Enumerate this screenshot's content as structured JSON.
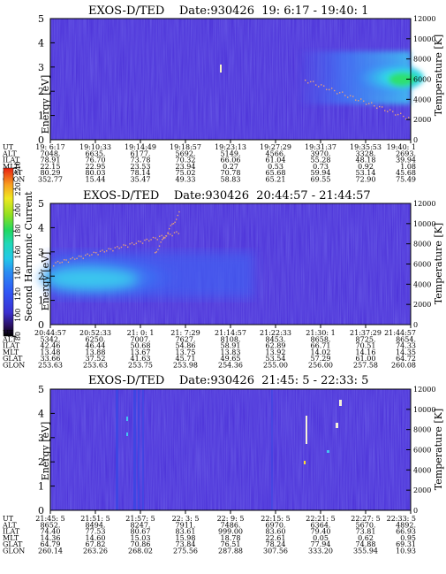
{
  "chart_data": [
    {
      "type": "heatmap",
      "title": "EXOS-D/TED    Date:930426  19: 6:17 - 19:40: 1",
      "ylabel": "Energy [eV]",
      "ylabel_right": "Temperature [K]",
      "ylim": [
        0,
        5
      ],
      "yticks": [
        "0",
        "1",
        "2",
        "3",
        "4",
        "5"
      ],
      "ylim_right": [
        0,
        12000
      ],
      "yticks_right": [
        "0",
        "2000",
        "4000",
        "6000",
        "8000",
        "10000",
        "12000"
      ],
      "table": {
        "row_labels": [
          "UT",
          "ALT",
          "ILAT",
          "MLT",
          "GLAT",
          "GLON"
        ],
        "columns": [
          [
            "19: 6:17",
            "7048.",
            "78.91",
            "22.15",
            "80.29",
            "352.77"
          ],
          [
            "19:10:33",
            "6635.",
            "76.70",
            "22.95",
            "80.03",
            "15.44"
          ],
          [
            "19:14:49",
            "6177.",
            "73.78",
            "23.53",
            "78.14",
            "35.47"
          ],
          [
            "19:18:57",
            "5692.",
            "70.32",
            "23.94",
            "75.02",
            "49.33"
          ],
          [
            "19:23:13",
            "5149.",
            "66.06",
            "0.27",
            "70.78",
            "58.83"
          ],
          [
            "19:27:29",
            "4566.",
            "61.04",
            "0.53",
            "65.68",
            "65.21"
          ],
          [
            "19:31:37",
            "3970.",
            "55.28",
            "0.73",
            "59.94",
            "69.55"
          ],
          [
            "19:35:53",
            "3328.",
            "48.18",
            "0.92",
            "53.14",
            "72.90"
          ],
          [
            "19:40: 1",
            "2693.",
            "39.94",
            "1.08",
            "45.68",
            "75.49"
          ]
        ]
      }
    },
    {
      "type": "heatmap",
      "title": "EXOS-D/TED    Date:930426  20:44:57 - 21:44:57",
      "ylabel": "Energy [eV]",
      "ylabel_right": "Temperature [K]",
      "ylim": [
        0,
        5
      ],
      "yticks": [
        "0",
        "1",
        "2",
        "3",
        "4",
        "5"
      ],
      "ylim_right": [
        0,
        12000
      ],
      "yticks_right": [
        "0",
        "2000",
        "4000",
        "6000",
        "8000",
        "10000",
        "12000"
      ],
      "colorbar": {
        "label": "Second Harmonic Current",
        "ticks": [
          "80",
          "100",
          "120",
          "140",
          "160",
          "180",
          "200",
          "220",
          "240"
        ],
        "range": [
          80,
          240
        ]
      },
      "table": {
        "row_labels": [
          "UT",
          "ALT",
          "ILAT",
          "MLT",
          "GLAT",
          "GLON"
        ],
        "columns": [
          [
            "20:44:57",
            "5342.",
            "42.46",
            "13.48",
            "33.66",
            "253.63"
          ],
          [
            "20:52:33",
            "6250.",
            "46.44",
            "13.88",
            "37.52",
            "253.63"
          ],
          [
            "21: 0: 1",
            "7007.",
            "50.68",
            "13.67",
            "41.63",
            "253.75"
          ],
          [
            "21: 7:29",
            "7627.",
            "54.86",
            "13.75",
            "45.71",
            "253.98"
          ],
          [
            "21:14:57",
            "8108.",
            "58.91",
            "13.83",
            "49.65",
            "254.36"
          ],
          [
            "21:22:33",
            "8453.",
            "62.89",
            "13.92",
            "53.54",
            "255.00"
          ],
          [
            "21:30: 1",
            "8658.",
            "66.71",
            "14.02",
            "57.29",
            "256.00"
          ],
          [
            "21:37:29",
            "8725.",
            "70.51",
            "14.16",
            "61.00",
            "257.58"
          ],
          [
            "21:44:57",
            "8654.",
            "74.33",
            "14.35",
            "64.72",
            "260.08"
          ]
        ]
      }
    },
    {
      "type": "heatmap",
      "title": "EXOS-D/TED    Date:930426  21:45: 5 - 22:33: 5",
      "ylabel": "Energy [eV]",
      "ylabel_right": "Temperature [K]",
      "ylim": [
        0,
        5
      ],
      "yticks": [
        "0",
        "1",
        "2",
        "3",
        "4",
        "5"
      ],
      "ylim_right": [
        0,
        12000
      ],
      "yticks_right": [
        "0",
        "2000",
        "4000",
        "6000",
        "8000",
        "10000",
        "12000"
      ],
      "table": {
        "row_labels": [
          "UT",
          "ALT",
          "ILAT",
          "MLT",
          "GLAT",
          "GLON"
        ],
        "columns": [
          [
            "21:45: 5",
            "8652.",
            "74.40",
            "14.36",
            "64.79",
            "260.14"
          ],
          [
            "21:51: 5",
            "8494.",
            "77.53",
            "14.60",
            "67.82",
            "263.26"
          ],
          [
            "21:57: 5",
            "8247.",
            "80.67",
            "15.03",
            "70.86",
            "268.02"
          ],
          [
            "22: 3: 5",
            "7911.",
            "83.61",
            "15.98",
            "73.84",
            "275.56"
          ],
          [
            "22: 9: 5",
            "7486.",
            "999.00",
            "18.78",
            "76.51",
            "287.88"
          ],
          [
            "22:15: 5",
            "6970.",
            "83.60",
            "22.61",
            "78.24",
            "307.56"
          ],
          [
            "22:21: 5",
            "6364.",
            "79.40",
            "0.05",
            "77.94",
            "333.20"
          ],
          [
            "22:27: 5",
            "5670.",
            "73.81",
            "0.62",
            "74.88",
            "355.94"
          ],
          [
            "22:33: 5",
            "4892.",
            "66.93",
            "0.95",
            "69.31",
            "10.93"
          ]
        ]
      }
    }
  ],
  "colors": {
    "background": "#4a2fd8",
    "band": "#3d6af5",
    "hot": "#44d8f4",
    "core": "#2bdc72",
    "core_dot": "#ffee44",
    "temperature_points": "#e6a07a"
  }
}
